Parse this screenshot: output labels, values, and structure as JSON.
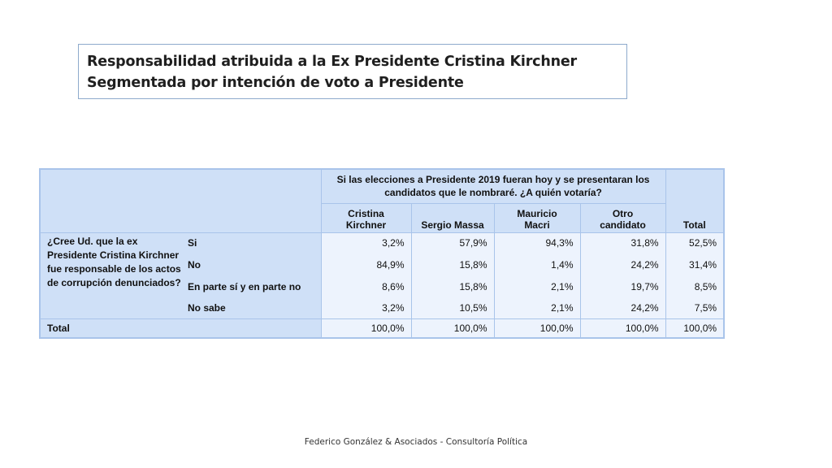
{
  "title": {
    "line1": "Responsabilidad atribuida a la Ex Presidente Cristina Kirchner",
    "line2": "Segmentada por intención de voto a Presidente"
  },
  "chart_data": {
    "type": "table",
    "group_header": "Si las elecciones a Presidente 2019 fueran hoy y se presentaran los candidatos que le nombraré. ¿A quién votaría?",
    "question": "¿Cree Ud. que la ex Presidente Cristina Kirchner fue responsable de los actos de corrupción denunciados?",
    "columns": [
      {
        "line1": "Cristina",
        "line2": "Kirchner"
      },
      {
        "line1": "",
        "line2": "Sergio Massa"
      },
      {
        "line1": "Mauricio",
        "line2": "Macri"
      },
      {
        "line1": "Otro",
        "line2": "candidato"
      },
      {
        "line1": "",
        "line2": "Total"
      }
    ],
    "rows": [
      {
        "label": "Si",
        "values": [
          "3,2%",
          "57,9%",
          "94,3%",
          "31,8%",
          "52,5%"
        ]
      },
      {
        "label": "No",
        "values": [
          "84,9%",
          "15,8%",
          "1,4%",
          "24,2%",
          "31,4%"
        ]
      },
      {
        "label": "En parte sí y en parte no",
        "values": [
          "8,6%",
          "15,8%",
          "2,1%",
          "19,7%",
          "8,5%"
        ]
      },
      {
        "label": "No sabe",
        "values": [
          "3,2%",
          "10,5%",
          "2,1%",
          "24,2%",
          "7,5%"
        ]
      }
    ],
    "total_row": {
      "label": "Total",
      "values": [
        "100,0%",
        "100,0%",
        "100,0%",
        "100,0%",
        "100,0%"
      ]
    }
  },
  "footer": "Federico González & Asociados - Consultoría Política",
  "colors": {
    "header_bg": "#cfe0f7",
    "cell_bg": "#edf3fd",
    "border": "#a9c4ea"
  }
}
